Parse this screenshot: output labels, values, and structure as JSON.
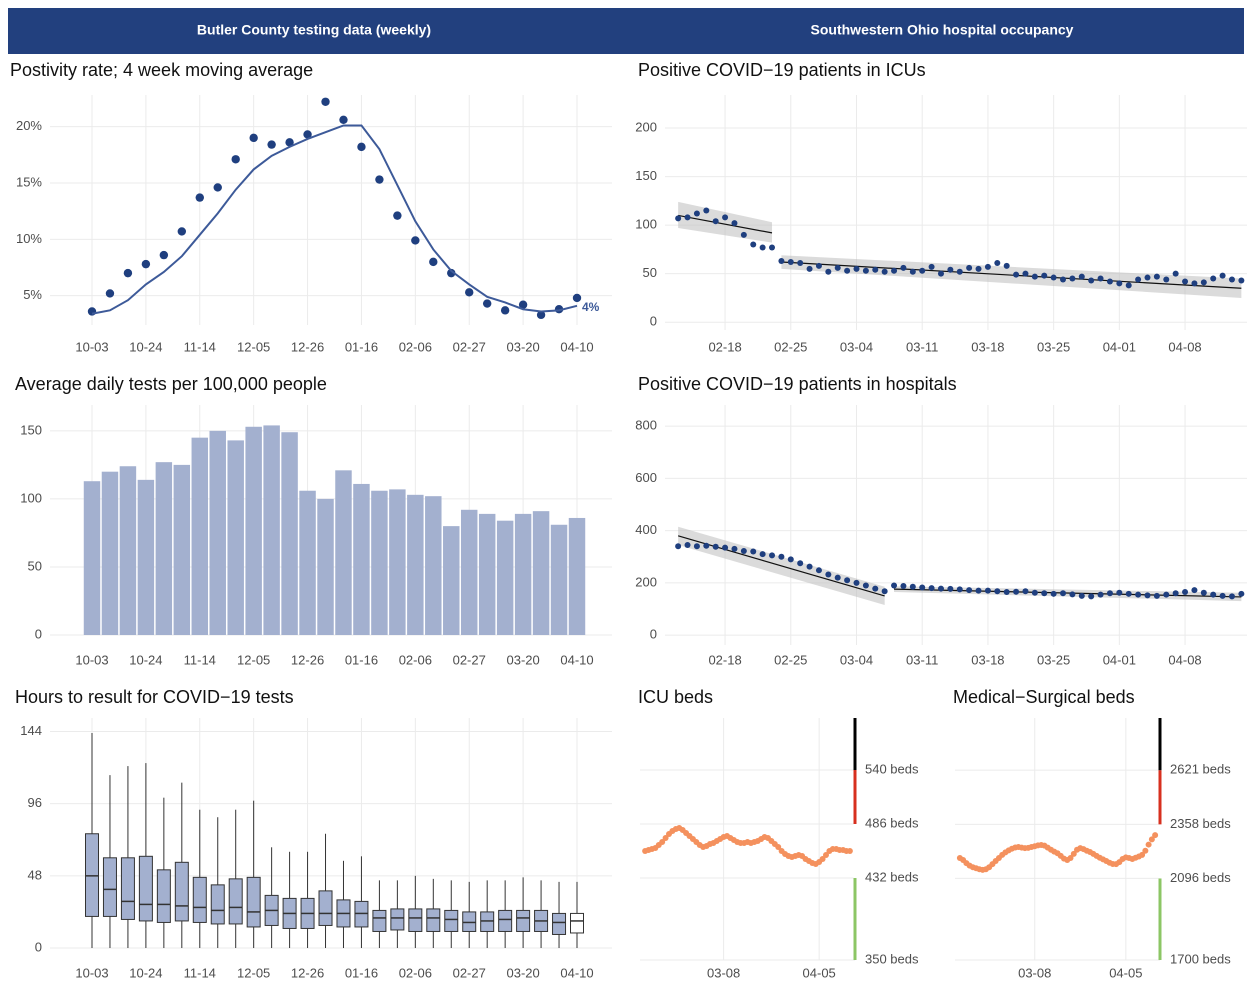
{
  "header": {
    "left_title": "Butler County testing data (weekly)",
    "right_title": "Southwestern Ohio hospital occupancy"
  },
  "chart_data": [
    {
      "type": "line",
      "title": "Postivity rate; 4 week moving average",
      "categories": [
        "10-03",
        null,
        null,
        "10-24",
        null,
        null,
        "11-14",
        null,
        null,
        "12-05",
        null,
        null,
        "12-26",
        null,
        null,
        "01-16",
        null,
        null,
        "02-06",
        null,
        null,
        "02-27",
        null,
        null,
        "03-20",
        null,
        null,
        "04-10"
      ],
      "series": [
        {
          "style": "points",
          "color": "#1f3f7f",
          "values": [
            3.6,
            5.2,
            7.0,
            7.8,
            8.6,
            10.7,
            13.7,
            14.6,
            17.1,
            19.0,
            18.4,
            18.6,
            19.3,
            22.2,
            20.6,
            18.2,
            15.3,
            12.1,
            9.9,
            8.0,
            7.0,
            5.3,
            4.3,
            3.7,
            4.2,
            3.3,
            3.8,
            4.8
          ]
        },
        {
          "style": "line",
          "color": "#3d5a99",
          "values": [
            3.4,
            3.7,
            4.6,
            6.0,
            7.1,
            8.5,
            10.4,
            12.3,
            14.4,
            16.2,
            17.4,
            18.2,
            18.9,
            19.5,
            20.1,
            20.1,
            18.0,
            14.8,
            11.6,
            9.1,
            7.2,
            6.0,
            4.9,
            4.4,
            3.8,
            3.6,
            3.7,
            4.1
          ],
          "value_labels": [
            null,
            null,
            null,
            null,
            null,
            null,
            null,
            null,
            null,
            null,
            null,
            null,
            null,
            null,
            null,
            null,
            null,
            null,
            null,
            null,
            null,
            null,
            null,
            null,
            null,
            null,
            null,
            "4%"
          ]
        }
      ],
      "ylim": [
        2.4,
        22.8
      ],
      "yticks": [
        {
          "value": 5,
          "label": "5%"
        },
        {
          "value": 10,
          "label": "10%"
        },
        {
          "value": 15,
          "label": "15%"
        },
        {
          "value": 20,
          "label": "20%"
        }
      ],
      "grid": true
    },
    {
      "type": "bar",
      "title": "Average daily tests per 100,000 people",
      "categories": [
        "10-03",
        null,
        null,
        "10-24",
        null,
        null,
        "11-14",
        null,
        null,
        "12-05",
        null,
        null,
        "12-26",
        null,
        null,
        "01-16",
        null,
        null,
        "02-06",
        null,
        null,
        "02-27",
        null,
        null,
        "03-20",
        null,
        null,
        "04-10"
      ],
      "values": [
        113,
        120,
        124,
        114,
        127,
        125,
        145,
        150,
        143,
        153,
        154,
        149,
        106,
        100,
        121,
        111,
        106,
        107,
        103,
        102,
        80,
        92,
        89,
        84,
        89,
        91,
        81,
        86
      ],
      "color": "#a3b0cf",
      "ylim": [
        0,
        169
      ],
      "yticks": [
        0,
        50,
        100,
        150
      ],
      "grid": true
    },
    {
      "type": "box",
      "title": "Hours to result for COVID−19 tests",
      "categories": [
        "10-03",
        null,
        null,
        "10-24",
        null,
        null,
        "11-14",
        null,
        null,
        "12-05",
        null,
        null,
        "12-26",
        null,
        null,
        "01-16",
        null,
        null,
        "02-06",
        null,
        null,
        "02-27",
        null,
        null,
        "03-20",
        null,
        null,
        "04-10"
      ],
      "min": [
        0,
        0,
        0,
        0,
        0,
        0,
        0,
        0,
        0,
        0,
        0,
        0,
        0,
        0,
        0,
        0,
        0,
        0,
        0,
        0,
        0,
        0,
        0,
        0,
        0,
        0,
        0,
        0
      ],
      "q1": [
        21,
        21,
        19,
        18,
        17,
        18,
        17,
        16,
        16,
        14,
        15,
        13,
        13,
        15,
        14,
        14,
        11,
        12,
        11,
        11,
        11,
        11,
        11,
        11,
        11,
        11,
        9,
        10
      ],
      "median": [
        48,
        39,
        31,
        29,
        29,
        28,
        27,
        25,
        27,
        24,
        25,
        23,
        23,
        23,
        23,
        23,
        20,
        20,
        20,
        20,
        19,
        17,
        18,
        19,
        20,
        18,
        17,
        18
      ],
      "q3": [
        76,
        60,
        60,
        61,
        52,
        57,
        47,
        42,
        46,
        47,
        35,
        33,
        33,
        38,
        32,
        31,
        25,
        26,
        26,
        26,
        25,
        24,
        24,
        25,
        25,
        25,
        23,
        23
      ],
      "max": [
        143,
        115,
        121,
        123,
        100,
        110,
        92,
        87,
        92,
        98,
        67,
        64,
        64,
        76,
        58,
        61,
        45,
        45,
        48,
        46,
        45,
        44,
        45,
        45,
        47,
        45,
        44,
        44
      ],
      "color": "#a3b0cf",
      "last_color": "#ffffff",
      "ylim": [
        0,
        153
      ],
      "yticks": [
        0,
        48,
        96,
        144
      ],
      "grid": true
    },
    {
      "type": "scatter",
      "title": "Positive COVID−19 patients in ICUs",
      "x": [
        "02-13",
        "02-14",
        "02-15",
        "02-16",
        "02-17",
        "02-18",
        "02-19",
        "02-20",
        "02-21",
        "02-22",
        "02-23",
        "02-24",
        "02-25",
        "02-26",
        "02-27",
        "02-28",
        "03-01",
        "03-02",
        "03-03",
        "03-04",
        "03-05",
        "03-06",
        "03-07",
        "03-08",
        "03-09",
        "03-10",
        "03-11",
        "03-12",
        "03-13",
        "03-14",
        "03-15",
        "03-16",
        "03-17",
        "03-18",
        "03-19",
        "03-20",
        "03-21",
        "03-22",
        "03-23",
        "03-24",
        "03-25",
        "03-26",
        "03-27",
        "03-28",
        "03-29",
        "03-30",
        "03-31",
        "04-01",
        "04-02",
        "04-03",
        "04-04",
        "04-05",
        "04-06",
        "04-07",
        "04-08",
        "04-09",
        "04-10",
        "04-11",
        "04-12",
        "04-13",
        "04-14"
      ],
      "values": [
        107,
        108,
        112,
        115,
        104,
        108,
        102,
        90,
        80,
        77,
        77,
        63,
        62,
        61,
        55,
        58,
        52,
        56,
        53,
        55,
        53,
        54,
        52,
        53,
        56,
        52,
        53,
        57,
        50,
        54,
        52,
        56,
        55,
        57,
        61,
        58,
        49,
        50,
        47,
        48,
        46,
        44,
        45,
        47,
        43,
        45,
        42,
        40,
        38,
        44,
        46,
        47,
        44,
        50,
        42,
        40,
        41,
        45,
        48,
        44,
        43
      ],
      "color": "#1f3f7f",
      "fits": [
        {
          "x": [
            "02-13",
            "02-23"
          ],
          "values": [
            110,
            92
          ],
          "lower": [
            97,
            82
          ],
          "upper": [
            124,
            103
          ]
        },
        {
          "x": [
            "02-24",
            "04-14"
          ],
          "values": [
            62,
            35
          ],
          "lower": [
            55,
            25
          ],
          "upper": [
            69,
            45
          ]
        }
      ],
      "xticks": [
        "02-18",
        "02-25",
        "03-04",
        "03-11",
        "03-18",
        "03-25",
        "04-01",
        "04-08"
      ],
      "ylim": [
        -8,
        234
      ],
      "yticks": [
        0,
        50,
        100,
        150,
        200
      ],
      "grid": true
    },
    {
      "type": "scatter",
      "title": "Positive COVID−19 patients in hospitals",
      "x": [
        "02-13",
        "02-14",
        "02-15",
        "02-16",
        "02-17",
        "02-18",
        "02-19",
        "02-20",
        "02-21",
        "02-22",
        "02-23",
        "02-24",
        "02-25",
        "02-26",
        "02-27",
        "02-28",
        "03-01",
        "03-02",
        "03-03",
        "03-04",
        "03-05",
        "03-06",
        "03-07",
        "03-08",
        "03-09",
        "03-10",
        "03-11",
        "03-12",
        "03-13",
        "03-14",
        "03-15",
        "03-16",
        "03-17",
        "03-18",
        "03-19",
        "03-20",
        "03-21",
        "03-22",
        "03-23",
        "03-24",
        "03-25",
        "03-26",
        "03-27",
        "03-28",
        "03-29",
        "03-30",
        "03-31",
        "04-01",
        "04-02",
        "04-03",
        "04-04",
        "04-05",
        "04-06",
        "04-07",
        "04-08",
        "04-09",
        "04-10",
        "04-11",
        "04-12",
        "04-13",
        "04-14"
      ],
      "values": [
        340,
        345,
        340,
        342,
        338,
        335,
        330,
        322,
        320,
        310,
        305,
        300,
        290,
        275,
        262,
        248,
        232,
        220,
        210,
        200,
        190,
        178,
        168,
        190,
        188,
        185,
        182,
        180,
        178,
        177,
        175,
        172,
        170,
        170,
        168,
        165,
        166,
        168,
        162,
        160,
        158,
        160,
        156,
        150,
        148,
        155,
        160,
        162,
        158,
        155,
        152,
        150,
        155,
        160,
        165,
        172,
        162,
        155,
        150,
        148,
        158
      ],
      "color": "#1f3f7f",
      "fits": [
        {
          "x": [
            "02-13",
            "03-07"
          ],
          "values": [
            380,
            150
          ],
          "lower": [
            345,
            115
          ],
          "upper": [
            415,
            185
          ]
        },
        {
          "x": [
            "03-08",
            "04-14"
          ],
          "values": [
            176,
            146
          ],
          "lower": [
            165,
            130
          ],
          "upper": [
            187,
            162
          ]
        }
      ],
      "xticks": [
        "02-18",
        "02-25",
        "03-04",
        "03-11",
        "03-18",
        "03-25",
        "04-01",
        "04-08"
      ],
      "ylim": [
        -38,
        881
      ],
      "yticks": [
        0,
        200,
        400,
        600,
        800
      ],
      "grid": true
    },
    {
      "type": "scatter",
      "title": "ICU beds",
      "x": [
        "02-13",
        "02-14",
        "02-15",
        "02-16",
        "02-17",
        "02-18",
        "02-19",
        "02-20",
        "02-21",
        "02-22",
        "02-23",
        "02-24",
        "02-25",
        "02-26",
        "02-27",
        "02-28",
        "03-01",
        "03-02",
        "03-03",
        "03-04",
        "03-05",
        "03-06",
        "03-07",
        "03-08",
        "03-09",
        "03-10",
        "03-11",
        "03-12",
        "03-13",
        "03-14",
        "03-15",
        "03-16",
        "03-17",
        "03-18",
        "03-19",
        "03-20",
        "03-21",
        "03-22",
        "03-23",
        "03-24",
        "03-25",
        "03-26",
        "03-27",
        "03-28",
        "03-29",
        "03-30",
        "03-31",
        "04-01",
        "04-02",
        "04-03",
        "04-04",
        "04-05",
        "04-06",
        "04-07",
        "04-08",
        "04-09",
        "04-10",
        "04-11",
        "04-12",
        "04-13",
        "04-14"
      ],
      "values": [
        459,
        460,
        461,
        462,
        465,
        468,
        472,
        476,
        479,
        481,
        482,
        480,
        477,
        474,
        471,
        468,
        465,
        463,
        464,
        466,
        467,
        469,
        471,
        473,
        474,
        472,
        470,
        468,
        467,
        467,
        468,
        467,
        468,
        469,
        471,
        473,
        472,
        469,
        466,
        463,
        459,
        456,
        454,
        453,
        454,
        455,
        454,
        451,
        449,
        447,
        446,
        448,
        451,
        455,
        459,
        461,
        461,
        460,
        460,
        459,
        459
      ],
      "color": "#f4915e",
      "zones": [
        {
          "from": 350,
          "to": 432,
          "color": "#8cc665"
        },
        {
          "from": 432,
          "to": 486,
          "color": "#ffffff"
        },
        {
          "from": 486,
          "to": 540,
          "color": "#d7301f"
        },
        {
          "from": 540,
          "to": 592,
          "color": "#000000"
        }
      ],
      "xticks": [
        "03-08",
        "04-05"
      ],
      "tick_side": "right",
      "ylim": [
        350,
        592
      ],
      "yticks": [
        {
          "value": 350,
          "label": "350 beds"
        },
        {
          "value": 432,
          "label": "432 beds"
        },
        {
          "value": 486,
          "label": "486 beds"
        },
        {
          "value": 540,
          "label": "540 beds"
        }
      ],
      "grid": true
    },
    {
      "type": "scatter",
      "title": "Medical−Surgical beds",
      "x": [
        "02-13",
        "02-14",
        "02-15",
        "02-16",
        "02-17",
        "02-18",
        "02-19",
        "02-20",
        "02-21",
        "02-22",
        "02-23",
        "02-24",
        "02-25",
        "02-26",
        "02-27",
        "02-28",
        "03-01",
        "03-02",
        "03-03",
        "03-04",
        "03-05",
        "03-06",
        "03-07",
        "03-08",
        "03-09",
        "03-10",
        "03-11",
        "03-12",
        "03-13",
        "03-14",
        "03-15",
        "03-16",
        "03-17",
        "03-18",
        "03-19",
        "03-20",
        "03-21",
        "03-22",
        "03-23",
        "03-24",
        "03-25",
        "03-26",
        "03-27",
        "03-28",
        "03-29",
        "03-30",
        "03-31",
        "04-01",
        "04-02",
        "04-03",
        "04-04",
        "04-05",
        "04-06",
        "04-07",
        "04-08",
        "04-09",
        "04-10",
        "04-11",
        "04-12",
        "04-13",
        "04-14"
      ],
      "values": [
        2195,
        2185,
        2170,
        2158,
        2150,
        2145,
        2140,
        2137,
        2140,
        2150,
        2165,
        2180,
        2195,
        2210,
        2222,
        2232,
        2240,
        2246,
        2248,
        2245,
        2243,
        2244,
        2248,
        2252,
        2256,
        2258,
        2255,
        2245,
        2235,
        2226,
        2218,
        2205,
        2192,
        2185,
        2195,
        2215,
        2235,
        2243,
        2238,
        2230,
        2224,
        2215,
        2205,
        2196,
        2188,
        2180,
        2172,
        2166,
        2165,
        2175,
        2190,
        2198,
        2195,
        2190,
        2196,
        2202,
        2210,
        2230,
        2260,
        2285,
        2306
      ],
      "color": "#f4915e",
      "zones": [
        {
          "from": 1700,
          "to": 2096,
          "color": "#8cc665"
        },
        {
          "from": 2096,
          "to": 2358,
          "color": "#ffffff"
        },
        {
          "from": 2358,
          "to": 2621,
          "color": "#d7301f"
        },
        {
          "from": 2621,
          "to": 2874,
          "color": "#000000"
        }
      ],
      "xticks": [
        "03-08",
        "04-05"
      ],
      "tick_side": "right",
      "ylim": [
        1700,
        2874
      ],
      "yticks": [
        {
          "value": 1700,
          "label": "1700 beds"
        },
        {
          "value": 2096,
          "label": "2096 beds"
        },
        {
          "value": 2358,
          "label": "2358 beds"
        },
        {
          "value": 2621,
          "label": "2621 beds"
        }
      ],
      "grid": true
    }
  ]
}
